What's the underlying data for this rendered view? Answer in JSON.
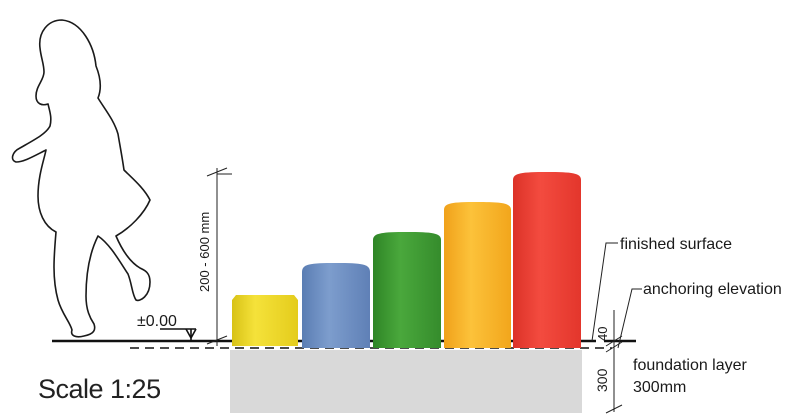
{
  "dimension_vertical": "200 - 600 mm",
  "level_marker": "±0.00",
  "dim_surface_gap": "40",
  "dim_foundation": "300",
  "labels": {
    "finished_surface": "finished surface",
    "anchoring_elevation": "anchoring elevation",
    "foundation_line1": "foundation layer",
    "foundation_line2": "300mm"
  },
  "scale": "Scale 1:25",
  "posts": [
    {
      "color": "#f2dc2a",
      "shade": "#c9b312"
    },
    {
      "color": "#6f90c4",
      "shade": "#4d6ea3"
    },
    {
      "color": "#3f9a34",
      "shade": "#2d7a24"
    },
    {
      "color": "#f7b52a",
      "shade": "#d98f10"
    },
    {
      "color": "#ee4236",
      "shade": "#c72a22"
    }
  ]
}
